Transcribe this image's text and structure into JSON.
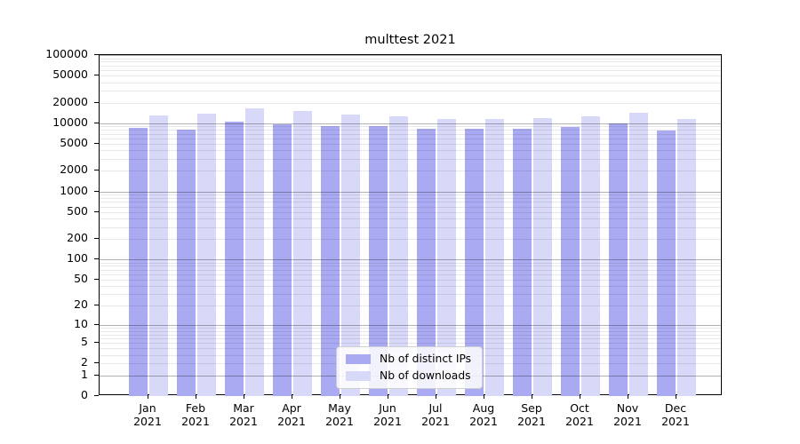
{
  "chart_data": {
    "type": "bar",
    "title": "multtest 2021",
    "categories": [
      "Jan",
      "Feb",
      "Mar",
      "Apr",
      "May",
      "Jun",
      "Jul",
      "Aug",
      "Sep",
      "Oct",
      "Nov",
      "Dec"
    ],
    "category_year": "2021",
    "series": [
      {
        "name": "Nb of distinct IPs",
        "color": "#aaaaf2",
        "values": [
          8500,
          8100,
          10600,
          9600,
          9100,
          9000,
          8200,
          8200,
          8200,
          8900,
          10000,
          7900
        ]
      },
      {
        "name": "Nb of downloads",
        "color": "#d8d8f8",
        "values": [
          12900,
          14000,
          16700,
          15000,
          13300,
          12600,
          11600,
          11500,
          11800,
          12600,
          14400,
          11500
        ]
      }
    ],
    "y_ticks": [
      0,
      1,
      2,
      5,
      10,
      20,
      50,
      100,
      200,
      500,
      1000,
      2000,
      5000,
      10000,
      20000,
      50000,
      100000
    ],
    "y_scale": "log10(1+v)",
    "ylim": [
      0,
      100000
    ],
    "grid": "on",
    "legend_position": "bottom-center"
  }
}
